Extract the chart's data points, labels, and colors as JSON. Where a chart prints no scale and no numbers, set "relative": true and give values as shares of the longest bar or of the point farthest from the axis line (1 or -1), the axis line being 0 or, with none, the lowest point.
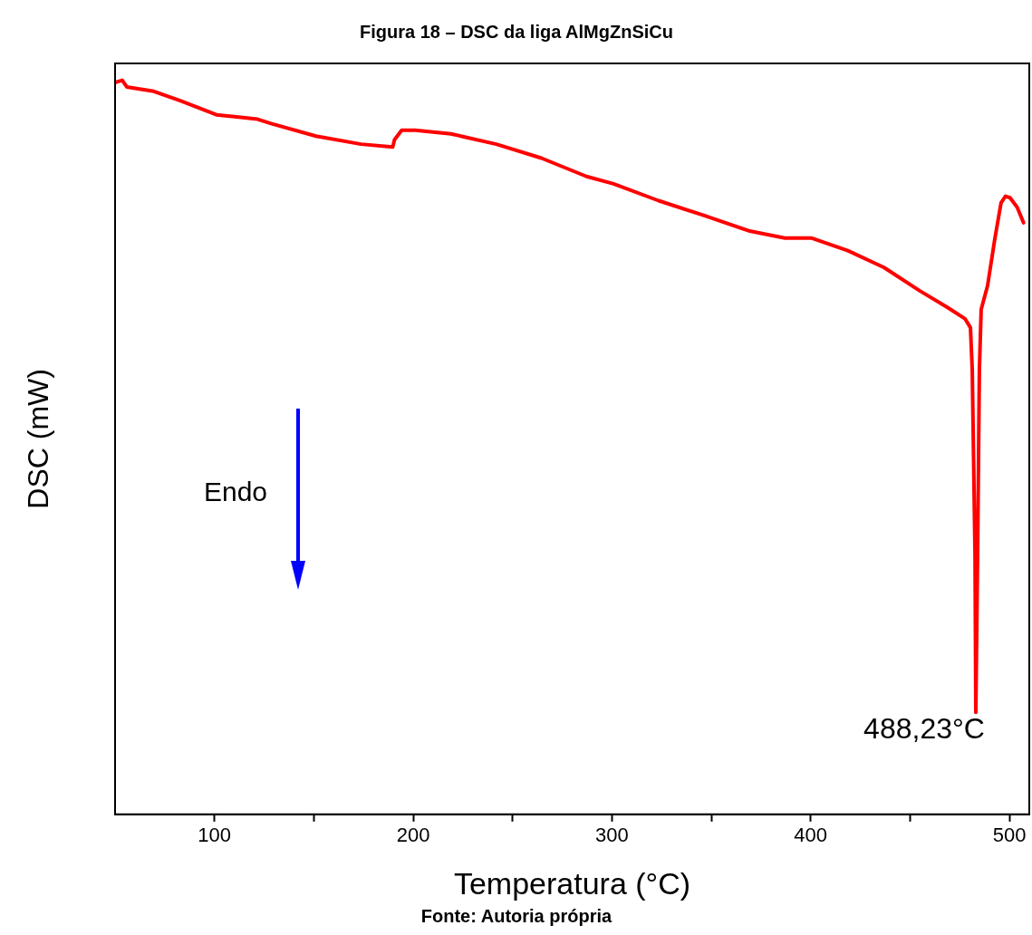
{
  "chart_data": {
    "type": "line",
    "title": "Figura 18 – DSC da liga AlMgZnSiCu",
    "xlabel": "Temperatura (°C)",
    "ylabel": "DSC (mW)",
    "relative": true,
    "x": [
      50,
      53.6,
      55.9,
      69.5,
      83.1,
      101,
      121.7,
      128.5,
      151.1,
      173.8,
      189.7,
      190.6,
      194.2,
      201,
      219,
      241.8,
      264.5,
      287.2,
      300.8,
      323.5,
      346.1,
      368.8,
      387,
      400.6,
      418.7,
      436.9,
      455,
      468.6,
      477.7,
      480.4,
      481.3,
      482.7,
      483.1,
      484,
      484.9,
      485.8,
      489,
      492.6,
      495.8,
      498,
      500.3,
      503.9,
      507.1
    ],
    "series": [
      {
        "color": "#ff0000",
        "values": [
          0.997,
          1.0,
          0.991,
          0.985,
          0.972,
          0.953,
          0.947,
          0.941,
          0.924,
          0.913,
          0.909,
          0.919,
          0.932,
          0.932,
          0.927,
          0.913,
          0.894,
          0.869,
          0.859,
          0.836,
          0.816,
          0.795,
          0.785,
          0.785,
          0.768,
          0.745,
          0.713,
          0.691,
          0.675,
          0.663,
          0.606,
          0.354,
          0.139,
          0.354,
          0.606,
          0.688,
          0.72,
          0.783,
          0.833,
          0.842,
          0.84,
          0.827,
          0.806
        ]
      }
    ],
    "xlim": [
      50,
      510
    ],
    "xticks": [
      100,
      {
        "value": 150,
        "label": null
      },
      200,
      {
        "value": 250,
        "label": null
      },
      300,
      {
        "value": 350,
        "label": null
      },
      400,
      {
        "value": 450,
        "label": null
      },
      500
    ],
    "annotations": [
      "Endo",
      "488,23°C",
      "Fonte: Autoria própria"
    ],
    "grid": false,
    "legend": false,
    "marker": "none",
    "line_style": "solid"
  }
}
